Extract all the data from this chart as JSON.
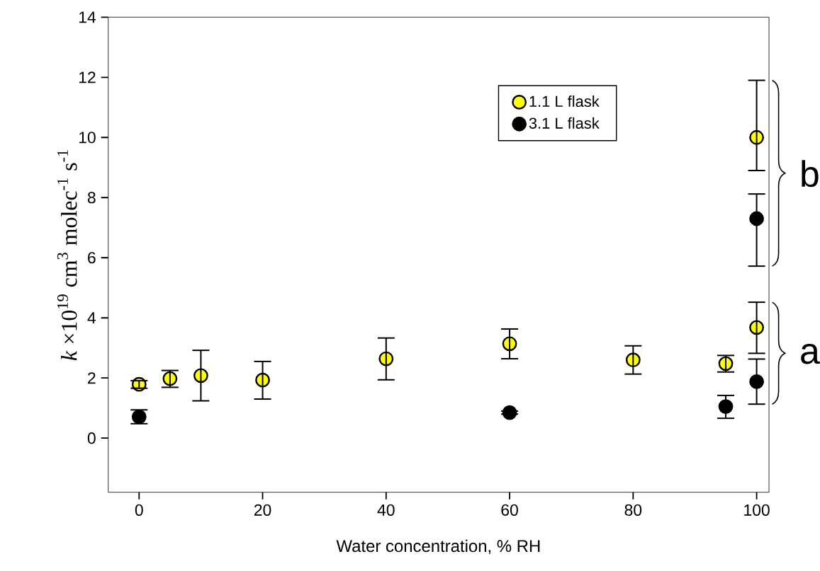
{
  "chart_data": {
    "type": "scatter",
    "xlabel": "Water concentration, % RH",
    "ylabel": "*k* ×10$^{19}$ cm$^{3}$ molec$^{-1}$ s$^{-1}$",
    "xlim": [
      -5,
      102
    ],
    "ylim": [
      -1.8,
      14
    ],
    "xticks": [
      0,
      20,
      40,
      60,
      80,
      100
    ],
    "yticks": [
      0,
      2,
      4,
      6,
      8,
      10,
      12,
      14
    ],
    "marker": "circle",
    "legend": "top right",
    "grid": false,
    "series": [
      {
        "name": "1.1 L flask",
        "color": "#ffff00",
        "x": [
          0,
          5,
          10,
          20,
          40,
          60,
          80,
          95,
          100,
          100
        ],
        "values": [
          1.79,
          1.98,
          2.08,
          1.93,
          2.64,
          3.14,
          2.6,
          2.48,
          3.68,
          10.0
        ],
        "errors": [
          [
            1.66,
            1.91
          ],
          [
            1.69,
            2.25
          ],
          [
            1.24,
            2.92
          ],
          [
            1.3,
            2.55
          ],
          [
            1.94,
            3.33
          ],
          [
            2.64,
            3.63
          ],
          [
            2.13,
            3.07
          ],
          [
            2.2,
            2.75
          ],
          [
            2.82,
            4.52
          ],
          [
            8.9,
            11.9
          ]
        ]
      },
      {
        "name": "3.1 L flask",
        "color": "#000000",
        "x": [
          0,
          60,
          95,
          100,
          100
        ],
        "values": [
          0.71,
          0.85,
          1.05,
          1.88,
          7.3
        ],
        "errors": [
          [
            0.48,
            0.94
          ],
          [
            0.8,
            0.9
          ],
          [
            0.66,
            1.42
          ],
          [
            1.13,
            2.63
          ],
          [
            5.72,
            8.12
          ]
        ]
      }
    ],
    "annotations": [
      {
        "text": "a",
        "x": 100,
        "y": 2.8
      },
      {
        "text": "b",
        "x": 100,
        "y": 8.8
      }
    ]
  }
}
